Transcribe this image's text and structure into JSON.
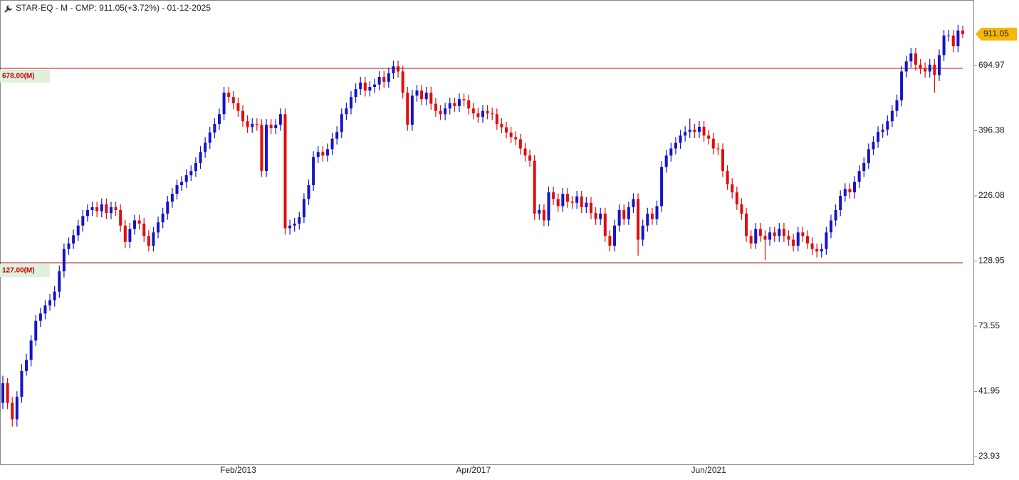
{
  "chart_data": {
    "type": "candlestick",
    "title": "STAR-EQ - M - CMP: 911.05(+3.72%) - 01-12-2025",
    "categories": [
      null,
      null,
      null,
      null,
      null,
      null,
      null,
      null,
      null,
      null,
      null,
      null,
      null,
      null,
      null,
      null,
      null,
      null,
      null,
      null,
      null,
      null,
      null,
      null,
      null,
      null,
      null,
      null,
      null,
      null,
      null,
      null,
      null,
      null,
      null,
      null,
      null,
      null,
      null,
      null,
      null,
      null,
      null,
      null,
      null,
      null,
      null,
      null,
      null,
      null,
      "Feb/2013",
      null,
      null,
      null,
      null,
      null,
      null,
      null,
      null,
      null,
      null,
      null,
      null,
      null,
      null,
      null,
      null,
      null,
      null,
      null,
      null,
      null,
      null,
      null,
      null,
      null,
      null,
      null,
      null,
      null,
      null,
      null,
      null,
      null,
      null,
      null,
      null,
      null,
      null,
      null,
      null,
      null,
      null,
      null,
      null,
      null,
      null,
      null,
      null,
      null,
      "Apr/2017",
      null,
      null,
      null,
      null,
      null,
      null,
      null,
      null,
      null,
      null,
      null,
      null,
      null,
      null,
      null,
      null,
      null,
      null,
      null,
      null,
      null,
      null,
      null,
      null,
      null,
      null,
      null,
      null,
      null,
      null,
      null,
      null,
      null,
      null,
      null,
      null,
      null,
      null,
      null,
      null,
      null,
      null,
      null,
      null,
      null,
      null,
      null,
      null,
      null,
      "Jun/2021",
      null,
      null,
      null,
      null,
      null,
      null,
      null,
      null,
      null,
      null,
      null,
      null,
      null,
      null,
      null,
      null,
      null,
      null,
      null,
      null,
      null,
      null,
      null,
      null,
      null,
      null,
      null,
      null,
      null,
      null,
      null,
      null,
      null,
      null,
      null,
      null,
      null,
      null,
      null,
      null,
      null,
      null,
      null,
      null,
      null,
      null,
      null,
      null,
      null,
      null,
      null,
      null,
      null,
      null
    ],
    "open": [
      38,
      45,
      38,
      33,
      40,
      50,
      55,
      65,
      77,
      82,
      88,
      92,
      99,
      118,
      143,
      150,
      161,
      175,
      190,
      200,
      205,
      198,
      210,
      195,
      205,
      200,
      175,
      152,
      170,
      183,
      178,
      160,
      147,
      165,
      180,
      194,
      215,
      230,
      248,
      255,
      270,
      280,
      300,
      330,
      357,
      390,
      420,
      457,
      550,
      530,
      502,
      470,
      430,
      409,
      420,
      417,
      280,
      417,
      405,
      417,
      457,
      171,
      175,
      178,
      188,
      220,
      248,
      316,
      330,
      320,
      338,
      370,
      392,
      457,
      480,
      530,
      567,
      600,
      560,
      578,
      590,
      630,
      604,
      650,
      690,
      660,
      550,
      417,
      536,
      560,
      520,
      550,
      500,
      470,
      457,
      480,
      502,
      490,
      520,
      515,
      480,
      460,
      446,
      470,
      460,
      457,
      420,
      408,
      390,
      375,
      368,
      340,
      320,
      306,
      194,
      200,
      183,
      233,
      220,
      207,
      230,
      215,
      213,
      225,
      205,
      213,
      195,
      185,
      194,
      160,
      147,
      175,
      200,
      185,
      205,
      220,
      155,
      175,
      194,
      185,
      207,
      290,
      320,
      340,
      357,
      380,
      392,
      400,
      392,
      410,
      380,
      370,
      340,
      338,
      280,
      250,
      233,
      210,
      194,
      160,
      150,
      170,
      160,
      155,
      165,
      160,
      170,
      160,
      155,
      147,
      165,
      160,
      150,
      143,
      140,
      143,
      165,
      183,
      200,
      226,
      240,
      233,
      255,
      280,
      300,
      338,
      360,
      392,
      400,
      430,
      470,
      515,
      660,
      720,
      771,
      700,
      680,
      660,
      700,
      640,
      760,
      900,
      900,
      820,
      940
    ],
    "high": [
      48,
      47,
      40,
      42,
      53,
      58,
      68,
      81,
      86,
      92,
      97,
      104,
      124,
      150,
      158,
      169,
      184,
      200,
      210,
      215,
      215,
      221,
      221,
      215,
      215,
      210,
      184,
      179,
      192,
      192,
      187,
      168,
      173,
      189,
      204,
      226,
      242,
      260,
      268,
      284,
      294,
      315,
      347,
      375,
      410,
      441,
      480,
      578,
      578,
      557,
      527,
      494,
      452,
      441,
      441,
      438,
      438,
      438,
      438,
      480,
      480,
      184,
      187,
      197,
      231,
      260,
      332,
      347,
      347,
      355,
      389,
      412,
      480,
      504,
      557,
      595,
      630,
      630,
      607,
      620,
      662,
      662,
      683,
      725,
      725,
      693,
      578,
      563,
      588,
      588,
      578,
      578,
      525,
      494,
      504,
      527,
      527,
      546,
      546,
      541,
      504,
      483,
      494,
      494,
      483,
      480,
      441,
      428,
      410,
      394,
      386,
      357,
      336,
      321,
      210,
      210,
      245,
      245,
      231,
      242,
      242,
      226,
      236,
      236,
      224,
      224,
      205,
      204,
      204,
      168,
      184,
      210,
      210,
      215,
      231,
      231,
      184,
      204,
      204,
      217,
      305,
      336,
      357,
      375,
      399,
      412,
      440,
      420,
      431,
      431,
      399,
      389,
      357,
      355,
      294,
      263,
      245,
      221,
      204,
      168,
      179,
      179,
      168,
      173,
      173,
      179,
      179,
      168,
      163,
      173,
      173,
      168,
      158,
      150,
      150,
      173,
      192,
      210,
      237,
      252,
      252,
      268,
      294,
      315,
      355,
      378,
      412,
      420,
      452,
      494,
      541,
      693,
      756,
      810,
      810,
      735,
      714,
      735,
      735,
      798,
      945,
      945,
      945,
      987,
      980
    ],
    "low": [
      36,
      36,
      31,
      31,
      38,
      48,
      52,
      62,
      73,
      78,
      84,
      87,
      94,
      112,
      136,
      143,
      153,
      166,
      181,
      190,
      188,
      188,
      185,
      185,
      190,
      166,
      144,
      144,
      162,
      169,
      152,
      140,
      140,
      157,
      171,
      184,
      204,
      219,
      236,
      242,
      257,
      266,
      285,
      314,
      339,
      371,
      399,
      434,
      504,
      477,
      447,
      409,
      389,
      389,
      396,
      266,
      266,
      385,
      385,
      396,
      162,
      162,
      166,
      169,
      179,
      209,
      236,
      300,
      304,
      304,
      321,
      352,
      372,
      434,
      456,
      504,
      539,
      532,
      532,
      549,
      561,
      574,
      574,
      618,
      627,
      523,
      396,
      396,
      509,
      494,
      494,
      475,
      447,
      434,
      434,
      456,
      466,
      466,
      489,
      456,
      437,
      424,
      424,
      437,
      434,
      399,
      388,
      371,
      356,
      350,
      323,
      304,
      291,
      184,
      184,
      174,
      174,
      209,
      197,
      197,
      204,
      202,
      202,
      195,
      195,
      185,
      176,
      176,
      152,
      140,
      140,
      166,
      176,
      176,
      195,
      135,
      147,
      166,
      176,
      176,
      197,
      276,
      304,
      323,
      339,
      361,
      372,
      372,
      372,
      361,
      352,
      323,
      321,
      266,
      238,
      221,
      200,
      184,
      152,
      143,
      143,
      152,
      130,
      147,
      152,
      152,
      152,
      147,
      140,
      140,
      152,
      143,
      136,
      133,
      133,
      136,
      157,
      174,
      190,
      215,
      221,
      221,
      242,
      266,
      285,
      321,
      342,
      372,
      380,
      409,
      447,
      489,
      627,
      684,
      665,
      646,
      627,
      627,
      550,
      608,
      722,
      855,
      779,
      779,
      880
    ],
    "close": [
      45,
      38,
      33,
      40,
      50,
      55,
      65,
      77,
      82,
      88,
      92,
      99,
      118,
      143,
      150,
      161,
      175,
      190,
      200,
      205,
      198,
      210,
      195,
      205,
      200,
      175,
      152,
      170,
      183,
      178,
      160,
      147,
      165,
      180,
      194,
      215,
      230,
      248,
      255,
      270,
      280,
      300,
      330,
      357,
      390,
      420,
      457,
      550,
      530,
      502,
      470,
      430,
      409,
      420,
      417,
      280,
      417,
      405,
      417,
      457,
      171,
      175,
      178,
      188,
      220,
      248,
      316,
      330,
      320,
      338,
      370,
      392,
      457,
      480,
      530,
      567,
      600,
      560,
      578,
      590,
      630,
      604,
      650,
      690,
      660,
      550,
      417,
      536,
      560,
      520,
      550,
      500,
      470,
      457,
      480,
      502,
      490,
      520,
      515,
      480,
      460,
      446,
      470,
      460,
      457,
      420,
      408,
      390,
      375,
      368,
      340,
      320,
      306,
      194,
      200,
      183,
      233,
      220,
      207,
      230,
      215,
      213,
      225,
      205,
      213,
      195,
      185,
      194,
      160,
      147,
      175,
      200,
      185,
      205,
      220,
      155,
      175,
      194,
      185,
      207,
      290,
      320,
      340,
      357,
      380,
      392,
      400,
      392,
      410,
      380,
      370,
      340,
      338,
      280,
      250,
      233,
      210,
      194,
      160,
      150,
      170,
      160,
      155,
      165,
      160,
      170,
      160,
      155,
      147,
      165,
      160,
      150,
      143,
      140,
      143,
      165,
      183,
      200,
      226,
      240,
      233,
      255,
      280,
      300,
      338,
      360,
      392,
      400,
      430,
      470,
      515,
      660,
      720,
      771,
      700,
      680,
      660,
      700,
      640,
      760,
      900,
      900,
      820,
      940,
      911.05
    ],
    "up_color": "#1414c8",
    "down_color": "#e00d0d",
    "log_scale": true,
    "ylim": [
      22.37,
      1222
    ],
    "yticks": [
      23.93,
      41.95,
      73.55,
      128.95,
      226.08,
      396.38,
      694.97
    ],
    "hlines": [
      {
        "value": 678,
        "label": "678.00(M)"
      },
      {
        "value": 127,
        "label": "127.00(M)"
      }
    ],
    "hline_color": "#b01010",
    "last_price": 911.05,
    "last_price_color": "#f5b70a"
  }
}
